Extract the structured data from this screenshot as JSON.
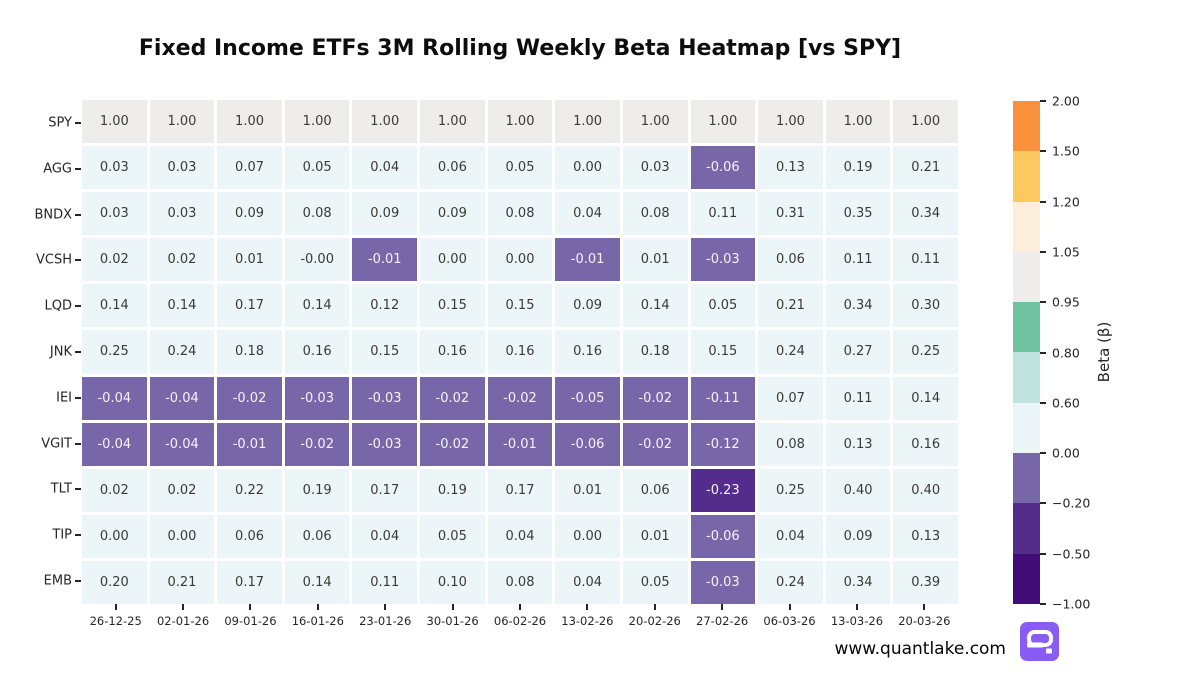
{
  "title": "Fixed Income ETFs 3M Rolling Weekly Beta Heatmap [vs SPY]",
  "watermark": {
    "text": "www.quantlake.com",
    "logo_color": "#8a5cf6"
  },
  "chart_data": {
    "type": "heatmap",
    "title": "Fixed Income ETFs 3M Rolling Weekly Beta Heatmap [vs SPY]",
    "rows": [
      "SPY",
      "AGG",
      "BNDX",
      "VCSH",
      "LQD",
      "JNK",
      "IEI",
      "VGIT",
      "TLT",
      "TIP",
      "EMB"
    ],
    "columns": [
      "26-12-25",
      "02-01-26",
      "09-01-26",
      "16-01-26",
      "23-01-26",
      "30-01-26",
      "06-02-26",
      "13-02-26",
      "20-02-26",
      "27-02-26",
      "06-03-26",
      "13-03-26",
      "20-03-26"
    ],
    "values": [
      [
        "1.00",
        "1.00",
        "1.00",
        "1.00",
        "1.00",
        "1.00",
        "1.00",
        "1.00",
        "1.00",
        "1.00",
        "1.00",
        "1.00",
        "1.00"
      ],
      [
        "0.03",
        "0.03",
        "0.07",
        "0.05",
        "0.04",
        "0.06",
        "0.05",
        "0.00",
        "0.03",
        "-0.06",
        "0.13",
        "0.19",
        "0.21"
      ],
      [
        "0.03",
        "0.03",
        "0.09",
        "0.08",
        "0.09",
        "0.09",
        "0.08",
        "0.04",
        "0.08",
        "0.11",
        "0.31",
        "0.35",
        "0.34"
      ],
      [
        "0.02",
        "0.02",
        "0.01",
        "-0.00",
        "-0.01",
        "0.00",
        "0.00",
        "-0.01",
        "0.01",
        "-0.03",
        "0.06",
        "0.11",
        "0.11"
      ],
      [
        "0.14",
        "0.14",
        "0.17",
        "0.14",
        "0.12",
        "0.15",
        "0.15",
        "0.09",
        "0.14",
        "0.05",
        "0.21",
        "0.34",
        "0.30"
      ],
      [
        "0.25",
        "0.24",
        "0.18",
        "0.16",
        "0.15",
        "0.16",
        "0.16",
        "0.16",
        "0.18",
        "0.15",
        "0.24",
        "0.27",
        "0.25"
      ],
      [
        "-0.04",
        "-0.04",
        "-0.02",
        "-0.03",
        "-0.03",
        "-0.02",
        "-0.02",
        "-0.05",
        "-0.02",
        "-0.11",
        "0.07",
        "0.11",
        "0.14"
      ],
      [
        "-0.04",
        "-0.04",
        "-0.01",
        "-0.02",
        "-0.03",
        "-0.02",
        "-0.01",
        "-0.06",
        "-0.02",
        "-0.12",
        "0.08",
        "0.13",
        "0.16"
      ],
      [
        "0.02",
        "0.02",
        "0.22",
        "0.19",
        "0.17",
        "0.19",
        "0.17",
        "0.01",
        "0.06",
        "-0.23",
        "0.25",
        "0.40",
        "0.40"
      ],
      [
        "0.00",
        "0.00",
        "0.06",
        "0.06",
        "0.04",
        "0.05",
        "0.04",
        "0.00",
        "0.01",
        "-0.06",
        "0.04",
        "0.09",
        "0.13"
      ],
      [
        "0.20",
        "0.21",
        "0.17",
        "0.14",
        "0.11",
        "0.10",
        "0.08",
        "0.04",
        "0.05",
        "-0.03",
        "0.24",
        "0.34",
        "0.39"
      ]
    ],
    "colorbar": {
      "label": "Beta (β)",
      "tick_labels": [
        "2.00",
        "1.50",
        "1.20",
        "1.05",
        "0.95",
        "0.80",
        "0.60",
        "0.00",
        "−0.20",
        "−0.50",
        "−1.00"
      ],
      "boundaries": [
        -1.0,
        -0.5,
        -0.2,
        0.0,
        0.6,
        0.8,
        0.95,
        1.05,
        1.2,
        1.5,
        2.0
      ],
      "segment_colors_top_to_bottom": [
        "#f9913d",
        "#fcc960",
        "#fdeedc",
        "#eeedeb",
        "#6fc3a1",
        "#bfe3de",
        "#ecf6f8",
        "#7767a8",
        "#542c8c",
        "#410c77"
      ],
      "legend_position": "right"
    },
    "grid": false,
    "cell_text_color_positive": "#3a3a3a",
    "cell_text_color_negative": "#f4f2f8"
  }
}
